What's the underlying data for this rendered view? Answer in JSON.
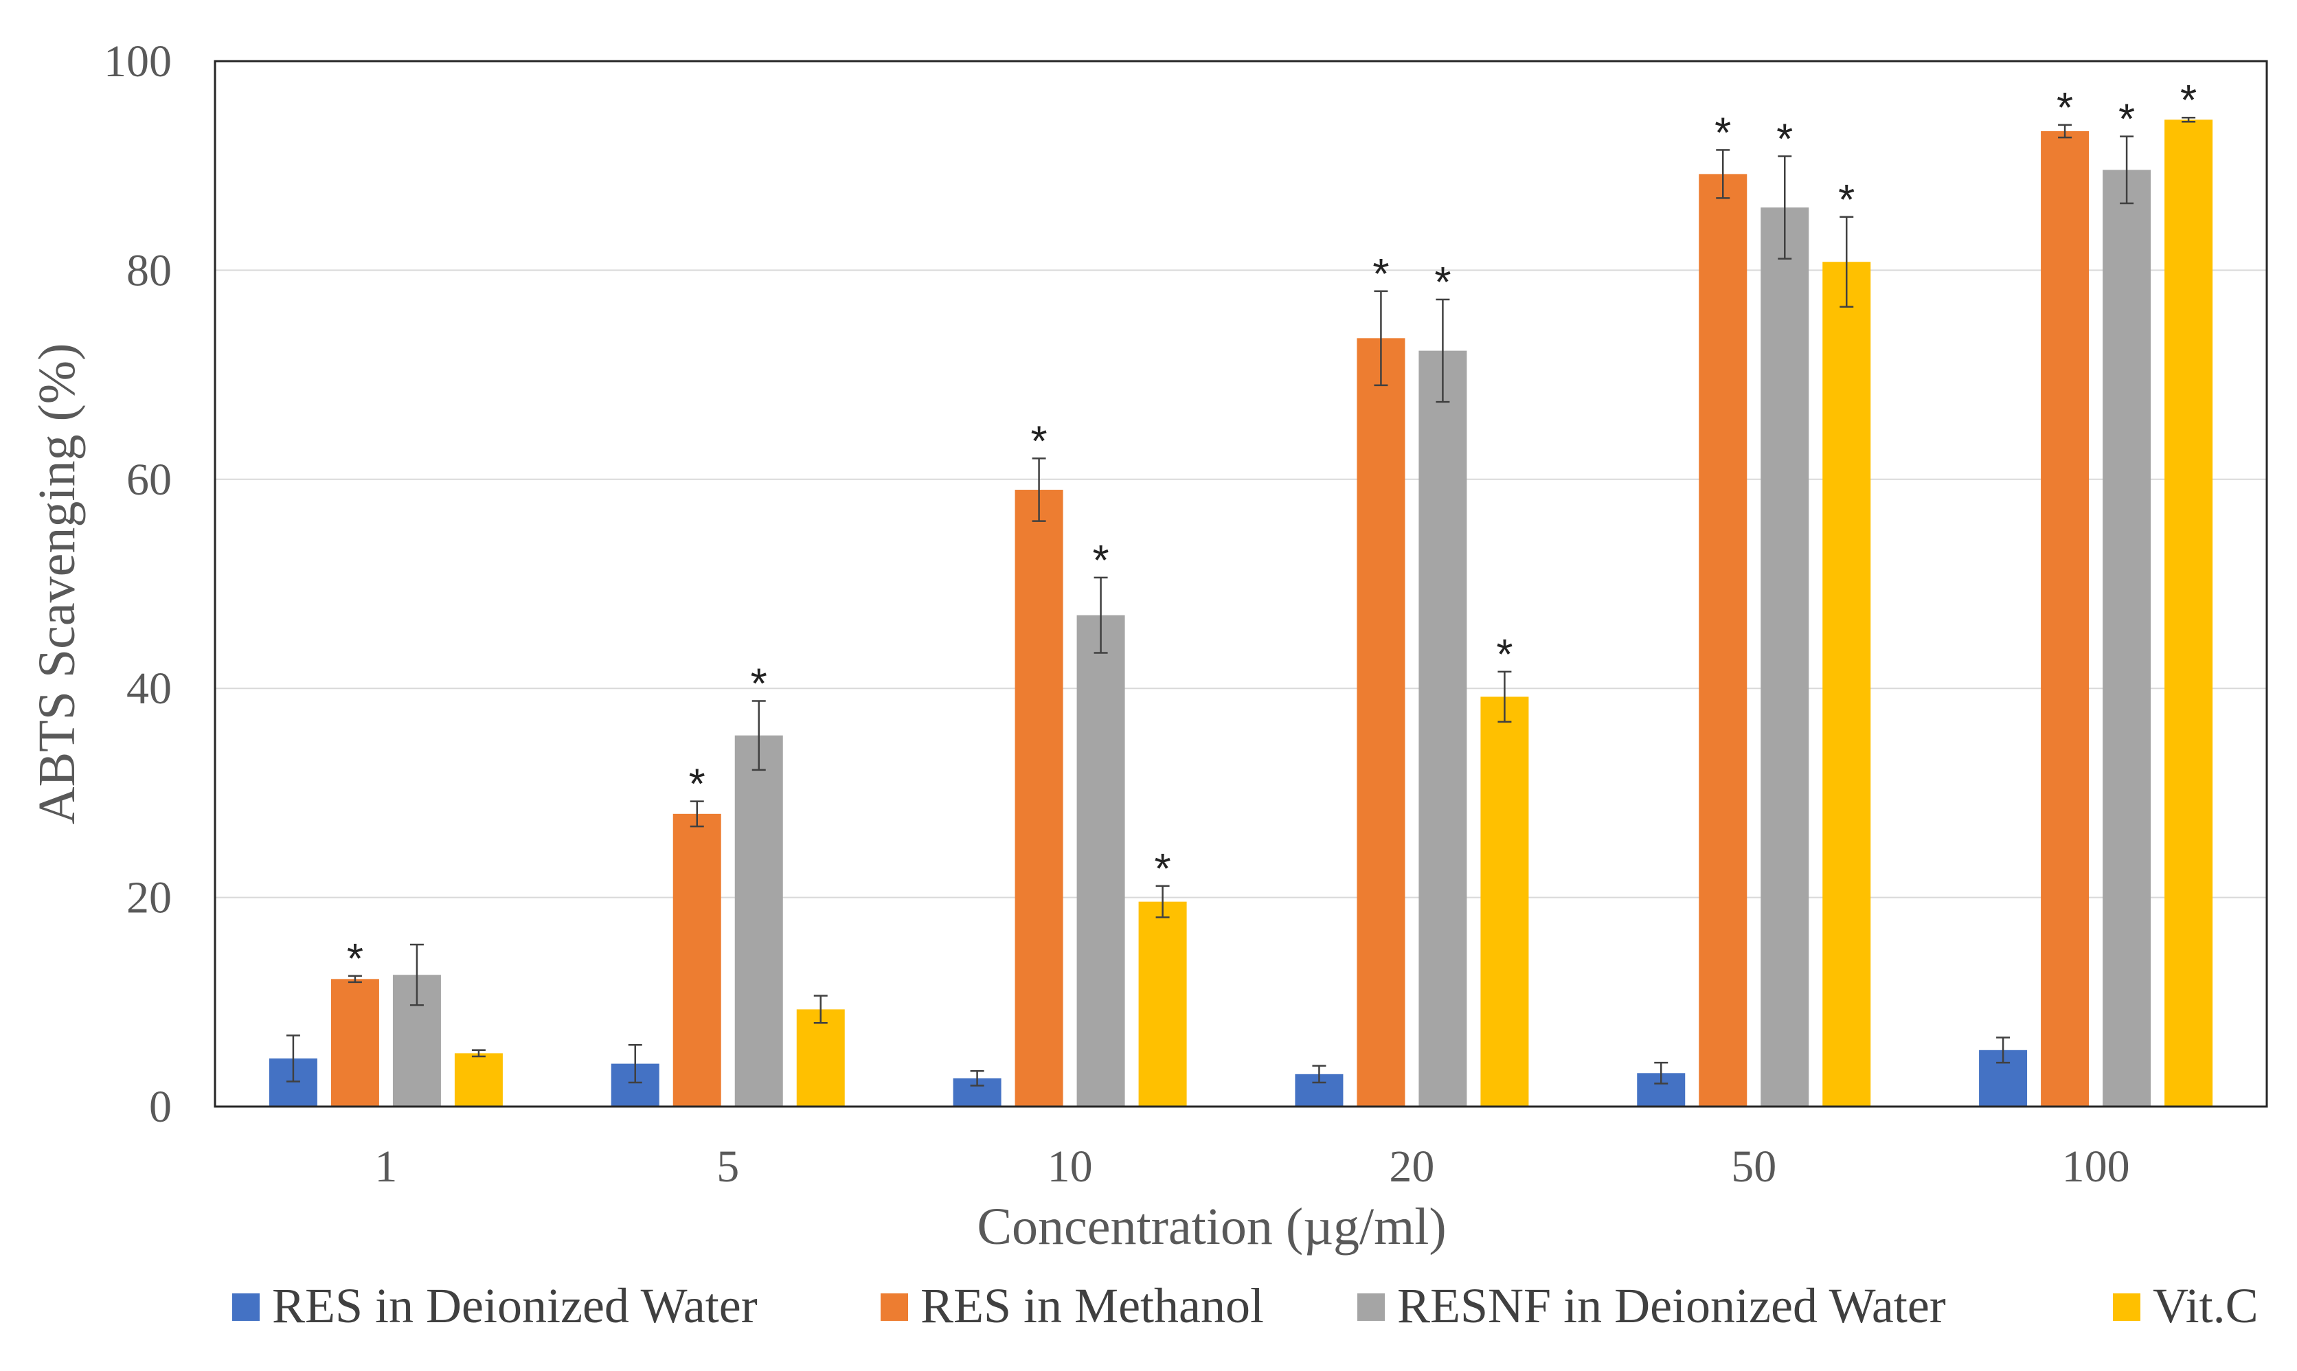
{
  "chart_data": {
    "type": "bar",
    "title": "",
    "xlabel": "Concentration (µg/ml)",
    "ylabel": "ABTS Scavenging (%)",
    "ylim": [
      0,
      100
    ],
    "yticks": [
      "0",
      "20",
      "40",
      "60",
      "80",
      "100"
    ],
    "categories": [
      "1",
      "5",
      "10",
      "20",
      "50",
      "100"
    ],
    "grid": "horizontal",
    "legend_position": "bottom",
    "significance_marker": "*",
    "series": [
      {
        "name": "RES in Deionized Water",
        "color": "#4472C4",
        "values": [
          4.6,
          4.1,
          2.7,
          3.1,
          3.2,
          5.4
        ],
        "errors": [
          2.2,
          1.8,
          0.7,
          0.8,
          1.0,
          1.2
        ],
        "significant": [
          false,
          false,
          false,
          false,
          false,
          false
        ]
      },
      {
        "name": "RES in Methanol",
        "color": "#ED7D31",
        "values": [
          12.2,
          28.0,
          59.0,
          73.5,
          89.2,
          93.3
        ],
        "errors": [
          0.3,
          1.2,
          3.0,
          4.5,
          2.3,
          0.6
        ],
        "significant": [
          true,
          true,
          true,
          true,
          true,
          true
        ]
      },
      {
        "name": "RESNF in Deionized Water",
        "color": "#A5A5A5",
        "values": [
          12.6,
          35.5,
          47.0,
          72.3,
          86.0,
          89.6
        ],
        "errors": [
          2.9,
          3.3,
          3.6,
          4.9,
          4.9,
          3.2
        ],
        "significant": [
          false,
          true,
          true,
          true,
          true,
          true
        ]
      },
      {
        "name": "Vit.C",
        "color": "#FFC000",
        "values": [
          5.1,
          9.3,
          19.6,
          39.2,
          80.8,
          94.4
        ],
        "errors": [
          0.3,
          1.3,
          1.5,
          2.4,
          4.3,
          0.2
        ],
        "significant": [
          false,
          false,
          true,
          true,
          true,
          true
        ]
      }
    ]
  }
}
